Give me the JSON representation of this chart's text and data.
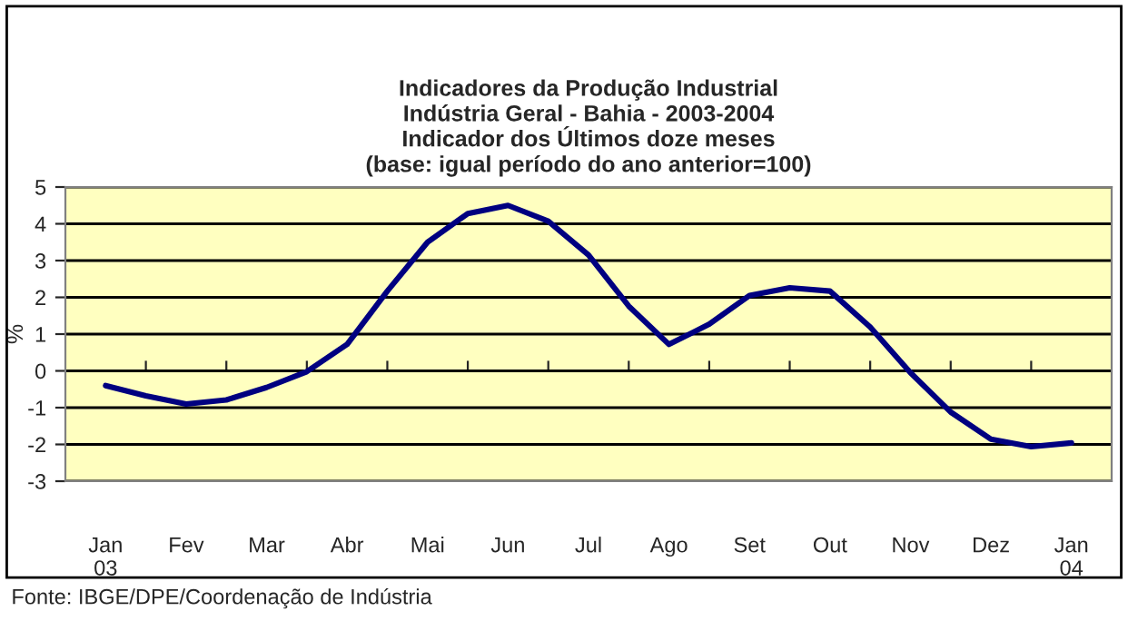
{
  "chart_data": {
    "type": "line",
    "title": "Indicadores da Produção Industrial\nIndústria Geral - Bahia - 2003-2004\nIndicador dos Últimos doze meses\n(base: igual período do ano anterior=100)",
    "ylabel": "%",
    "categories": [
      "Jan\n03",
      null,
      "Fev",
      null,
      "Mar",
      null,
      "Abr",
      null,
      "Mai",
      null,
      "Jun",
      null,
      "Jul",
      null,
      "Ago",
      null,
      "Set",
      null,
      "Out",
      null,
      "Nov",
      null,
      "Dez",
      null,
      "Jan\n04"
    ],
    "series": [
      {
        "color": "#000080",
        "values": [
          -0.4,
          -0.68,
          -0.9,
          -0.79,
          -0.45,
          -0.02,
          0.72,
          2.17,
          3.5,
          4.28,
          4.5,
          4.07,
          3.15,
          1.76,
          0.72,
          1.27,
          2.05,
          2.26,
          2.17,
          1.19,
          -0.05,
          -1.12,
          -1.86,
          -2.06,
          -1.96
        ]
      }
    ],
    "ylim": [
      -3,
      5
    ],
    "yticks": [
      -3,
      -2,
      -1,
      0,
      1,
      2,
      3,
      4,
      5
    ],
    "grid": "y",
    "marker": "none",
    "line_style": "solid",
    "annotations": [
      "Fonte: IBGE/DPE/Coordenação de Indústria"
    ]
  }
}
